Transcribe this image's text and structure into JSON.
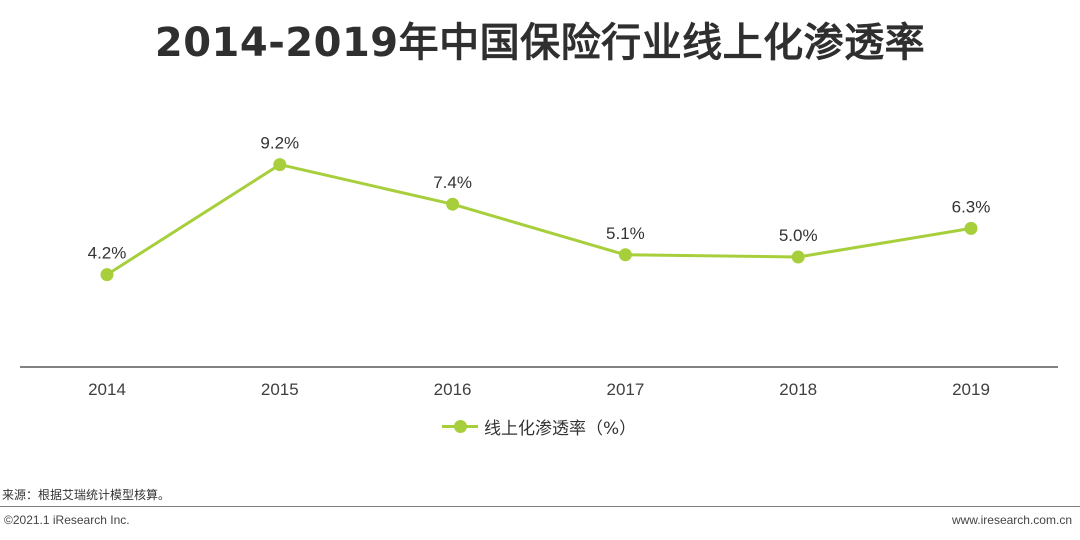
{
  "title": "2014-2019年中国保险行业线上化渗透率",
  "chart_data": {
    "type": "line",
    "categories": [
      "2014",
      "2015",
      "2016",
      "2017",
      "2018",
      "2019"
    ],
    "series": [
      {
        "name": "线上化渗透率（%）",
        "values": [
          4.2,
          9.2,
          7.4,
          5.1,
          5.0,
          6.3
        ],
        "labels": [
          "4.2%",
          "9.2%",
          "7.4%",
          "5.1%",
          "5.0%",
          "6.3%"
        ]
      }
    ],
    "color": "#a6cf3b",
    "axis_color": "#595959",
    "ylim": [
      0,
      13.5
    ],
    "grid": false,
    "legend_position": "bottom-center"
  },
  "legend": {
    "label": "线上化渗透率（%）"
  },
  "source": "来源：根据艾瑞统计模型核算。",
  "copyright": "©2021.1 iResearch Inc.",
  "website": "www.iresearch.com.cn"
}
